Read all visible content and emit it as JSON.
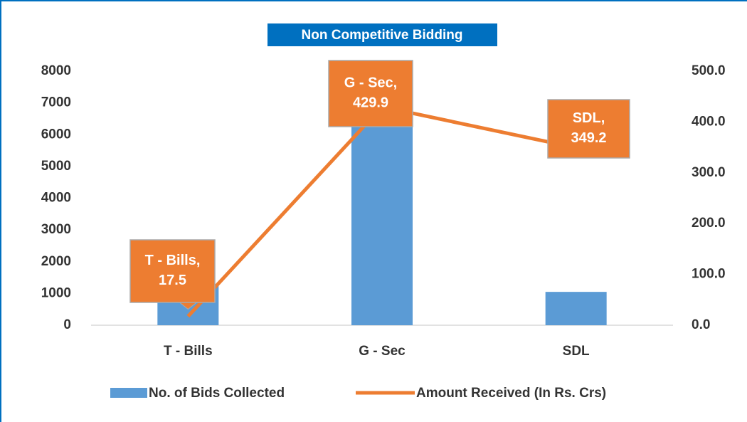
{
  "chart_data": {
    "type": "bar_line",
    "title": "Non Competitive Bidding",
    "categories": [
      "T - Bills",
      "G - Sec",
      "SDL"
    ],
    "series": [
      {
        "name": "No. of Bids Collected",
        "color": "#5b9bd5",
        "values": [
          1300,
          6500,
          1050
        ],
        "type": "bar"
      },
      {
        "name": "Amount Received (In Rs. Crs)",
        "color": "#ed7d31",
        "values": [
          17.5,
          429.9,
          349.2
        ],
        "type": "line",
        "axis": "y2",
        "value_labels": [
          "T - Bills, 17.5",
          "G - Sec, 429.9",
          "SDL, 349.2"
        ]
      }
    ],
    "ylim": [
      0,
      8000
    ],
    "yticks": [
      0,
      1000,
      2000,
      3000,
      4000,
      5000,
      6000,
      7000,
      8000
    ],
    "y2lim": [
      0,
      500
    ],
    "y2ticks": [
      {
        "value": 0,
        "label": "0.0"
      },
      {
        "value": 100,
        "label": "100.0"
      },
      {
        "value": 200,
        "label": "200.0"
      },
      {
        "value": 300,
        "label": "300.0"
      },
      {
        "value": 400,
        "label": "400.0"
      },
      {
        "value": 500,
        "label": "500.0"
      }
    ],
    "legend": "bottom"
  }
}
